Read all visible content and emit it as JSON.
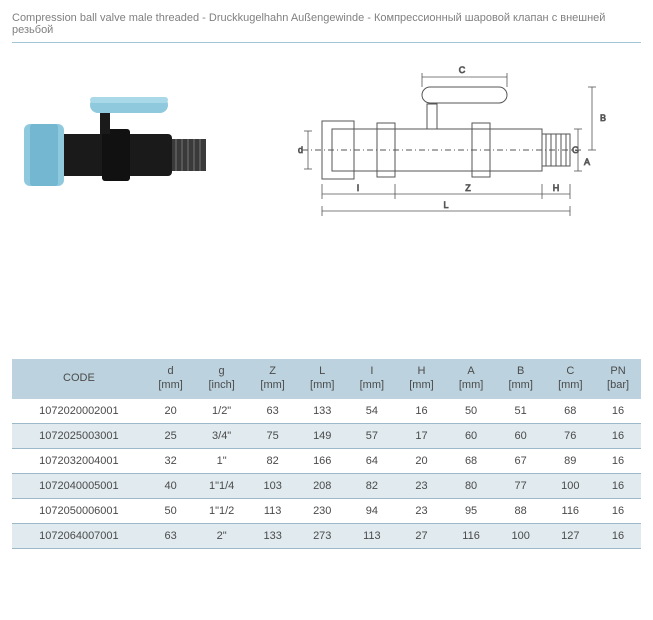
{
  "title": {
    "en": "Compression ball valve male threaded",
    "de": "Druckkugelhahn Außengewinde",
    "ru": "Компрессионный шаровой клапан с внешней резьбой",
    "sep": " - "
  },
  "product_photo": {
    "type": "schematic-photo",
    "handle_color": "#8fc9de",
    "body_color": "#1a1a1a",
    "compression_ring_color": "#8fc9de",
    "thread_color": "#4a4a4a"
  },
  "tech_drawing": {
    "type": "dimensioned-drawing",
    "stroke": "#555555",
    "fill": "#ffffff",
    "dim_labels": [
      "C",
      "B",
      "A",
      "G",
      "d",
      "I",
      "Z",
      "H",
      "L"
    ]
  },
  "table": {
    "columns": [
      {
        "key": "code",
        "label": "CODE",
        "unit": ""
      },
      {
        "key": "d",
        "label": "d",
        "unit": "[mm]"
      },
      {
        "key": "g",
        "label": "g",
        "unit": "[inch]"
      },
      {
        "key": "Z",
        "label": "Z",
        "unit": "[mm]"
      },
      {
        "key": "L",
        "label": "L",
        "unit": "[mm]"
      },
      {
        "key": "I",
        "label": "I",
        "unit": "[mm]"
      },
      {
        "key": "H",
        "label": "H",
        "unit": "[mm]"
      },
      {
        "key": "A",
        "label": "A",
        "unit": "[mm]"
      },
      {
        "key": "B",
        "label": "B",
        "unit": "[mm]"
      },
      {
        "key": "C",
        "label": "C",
        "unit": "[mm]"
      },
      {
        "key": "PN",
        "label": "PN",
        "unit": "[bar]"
      }
    ],
    "rows": [
      [
        "1072020002001",
        "20",
        "1/2\"",
        "63",
        "133",
        "54",
        "16",
        "50",
        "51",
        "68",
        "16"
      ],
      [
        "1072025003001",
        "25",
        "3/4\"",
        "75",
        "149",
        "57",
        "17",
        "60",
        "60",
        "76",
        "16"
      ],
      [
        "1072032004001",
        "32",
        "1\"",
        "82",
        "166",
        "64",
        "20",
        "68",
        "67",
        "89",
        "16"
      ],
      [
        "1072040005001",
        "40",
        "1\"1/4",
        "103",
        "208",
        "82",
        "23",
        "80",
        "77",
        "100",
        "16"
      ],
      [
        "1072050006001",
        "50",
        "1\"1/2",
        "113",
        "230",
        "94",
        "23",
        "95",
        "88",
        "116",
        "16"
      ],
      [
        "1072064007001",
        "63",
        "2\"",
        "133",
        "273",
        "113",
        "27",
        "116",
        "100",
        "127",
        "16"
      ]
    ],
    "header_bg": "#bcd3df",
    "row_alt_bg": "#e0eaef",
    "border_color": "#9db9c9"
  }
}
